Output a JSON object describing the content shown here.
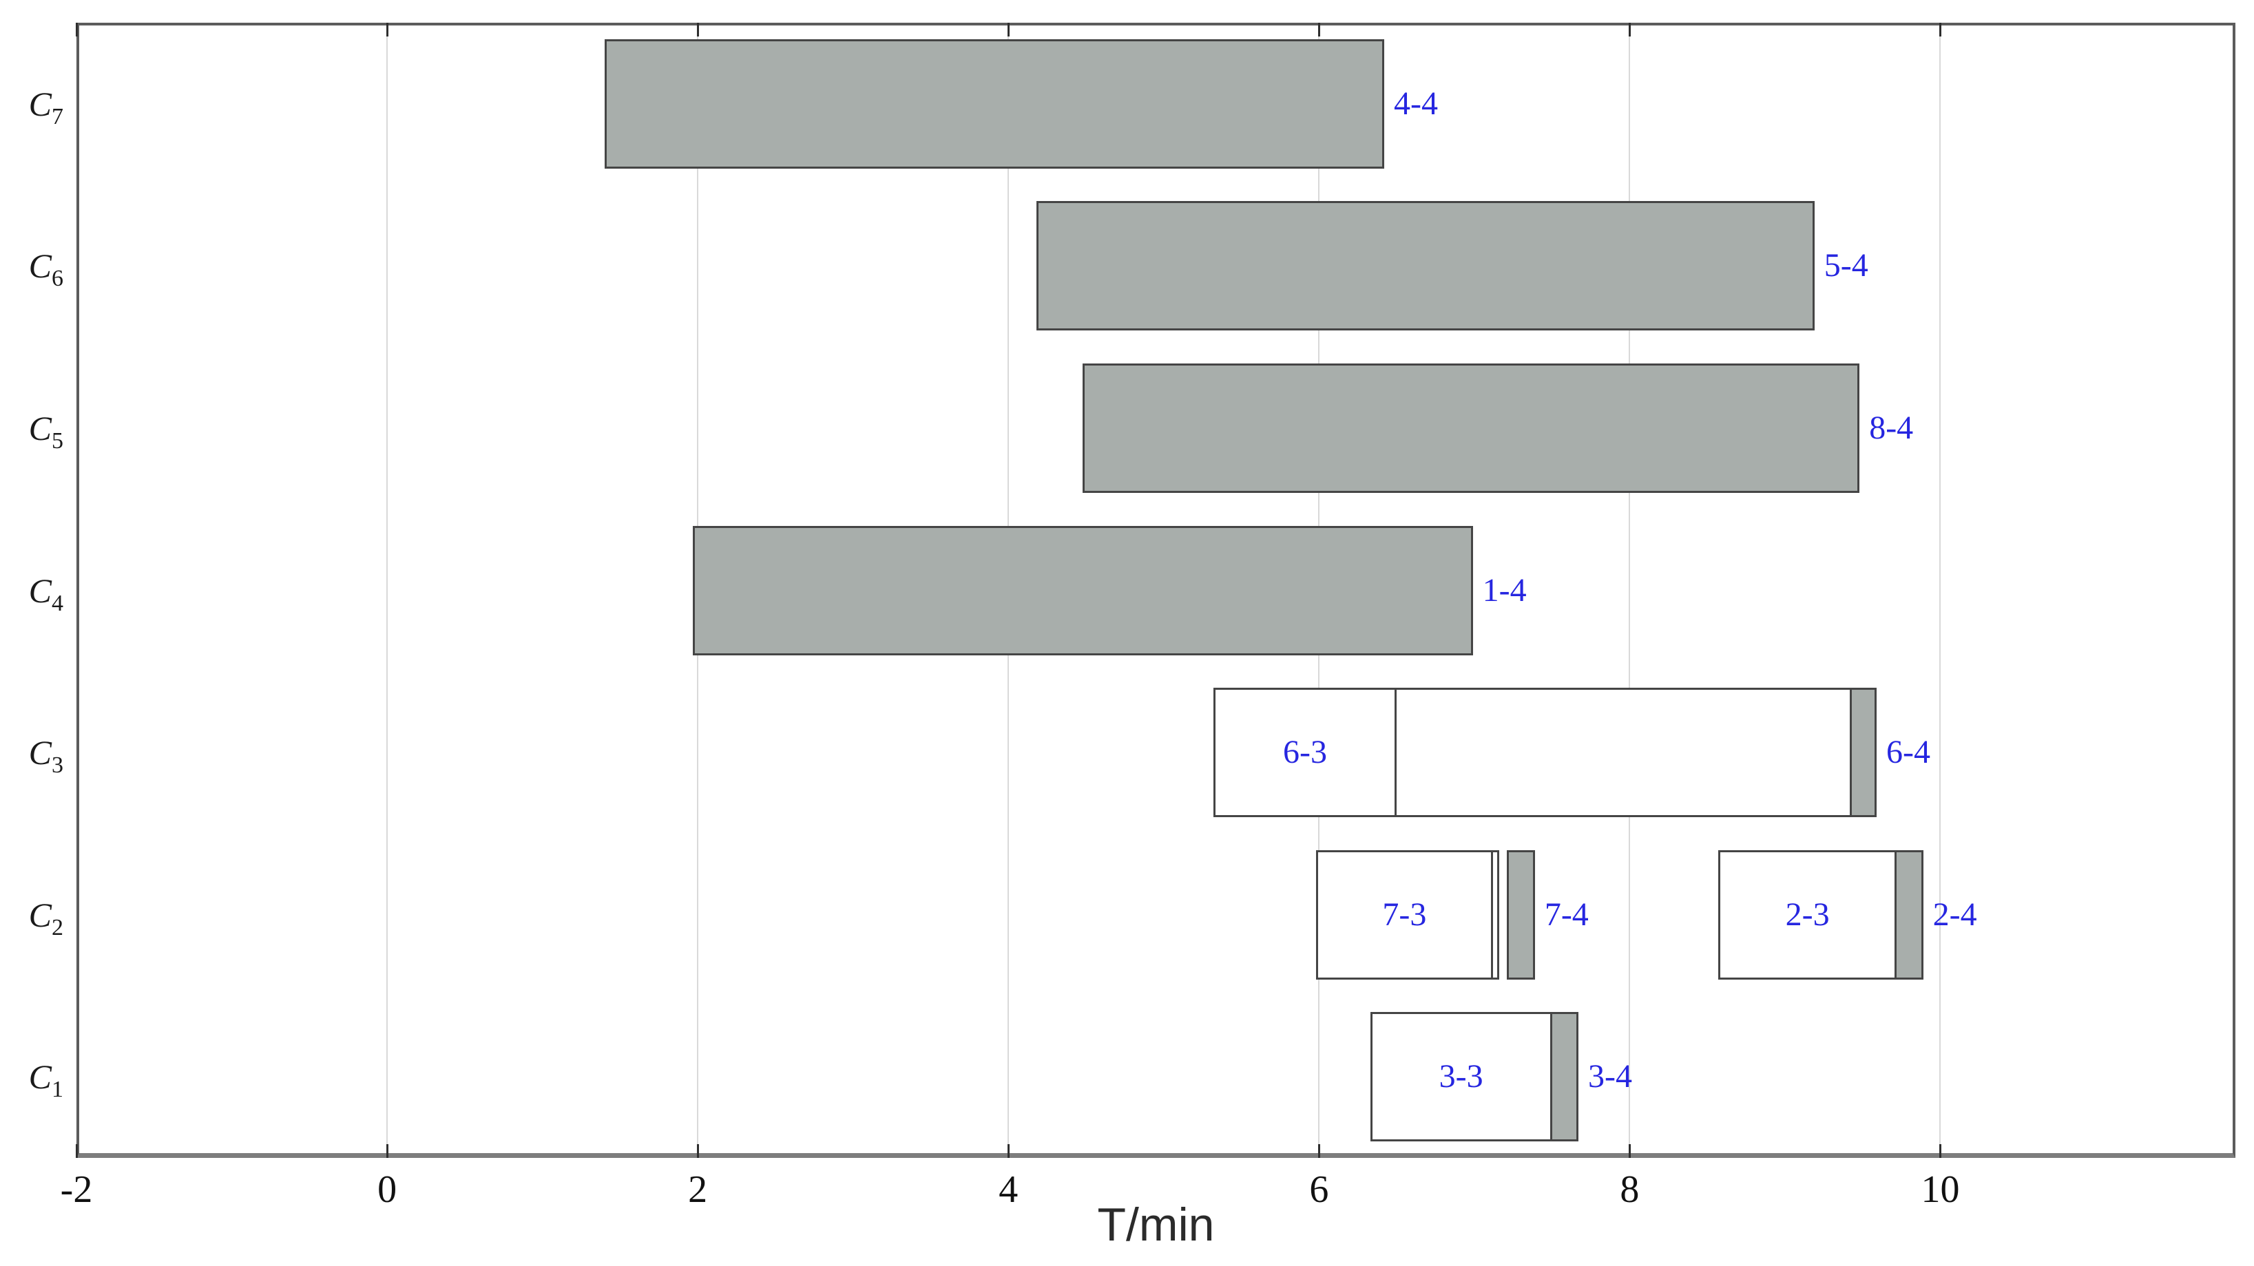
{
  "figure": {
    "background": "#ffffff"
  },
  "chart_data": {
    "type": "gantt",
    "title": "",
    "xlabel": "T/min",
    "ylabel": "",
    "xlim": [
      -2,
      11.9
    ],
    "grid": "vertical-only",
    "legend": "none",
    "x_ticks": [
      {
        "value": -2,
        "label": "-2"
      },
      {
        "value": 0,
        "label": "0"
      },
      {
        "value": 2,
        "label": "2"
      },
      {
        "value": 4,
        "label": "4"
      },
      {
        "value": 6,
        "label": "6"
      },
      {
        "value": 8,
        "label": "8"
      },
      {
        "value": 10,
        "label": "10"
      }
    ],
    "rows": [
      {
        "name": "C7",
        "base": "C",
        "sub": "7",
        "bars": [
          {
            "start": 1.4,
            "end": 6.42,
            "fill": "gray",
            "tag": "4-4"
          }
        ]
      },
      {
        "name": "C6",
        "base": "C",
        "sub": "6",
        "bars": [
          {
            "start": 4.18,
            "end": 9.19,
            "fill": "gray",
            "tag": "5-4"
          }
        ]
      },
      {
        "name": "C5",
        "base": "C",
        "sub": "5",
        "bars": [
          {
            "start": 4.48,
            "end": 9.48,
            "fill": "gray",
            "tag": "8-4"
          }
        ]
      },
      {
        "name": "C4",
        "base": "C",
        "sub": "4",
        "bars": [
          {
            "start": 1.97,
            "end": 6.99,
            "fill": "gray",
            "tag": "1-4"
          }
        ]
      },
      {
        "name": "C3",
        "base": "C",
        "sub": "3",
        "bars": [
          {
            "start": 5.32,
            "end": 6.5,
            "fill": "white",
            "label": "6-3"
          },
          {
            "start": 6.5,
            "end": 9.43,
            "fill": "white"
          },
          {
            "start": 9.43,
            "end": 9.59,
            "fill": "gray",
            "tag": "6-4"
          }
        ]
      },
      {
        "name": "C2",
        "base": "C",
        "sub": "2",
        "bars": [
          {
            "start": 5.98,
            "end": 7.12,
            "fill": "white",
            "label": "7-3"
          },
          {
            "start": 7.12,
            "end": 7.16,
            "fill": "white"
          },
          {
            "start": 7.21,
            "end": 7.39,
            "fill": "gray",
            "tag": "7-4"
          },
          {
            "start": 8.57,
            "end": 9.72,
            "fill": "white",
            "label": "2-3"
          },
          {
            "start": 9.72,
            "end": 9.89,
            "fill": "gray",
            "tag": "2-4"
          }
        ]
      },
      {
        "name": "C1",
        "base": "C",
        "sub": "1",
        "bars": [
          {
            "start": 6.33,
            "end": 7.5,
            "fill": "white",
            "label": "3-3"
          },
          {
            "start": 7.5,
            "end": 7.67,
            "fill": "gray",
            "tag": "3-4"
          }
        ]
      }
    ],
    "colors": {
      "bar_gray": "#a8aeab",
      "bar_border": "#454545",
      "label_blue": "#2626e0",
      "gridline": "#d9d9d9",
      "frame": "#5c5c5c",
      "bottom_axis": "#7d7d7d",
      "tick": "#2f2f2f"
    }
  }
}
